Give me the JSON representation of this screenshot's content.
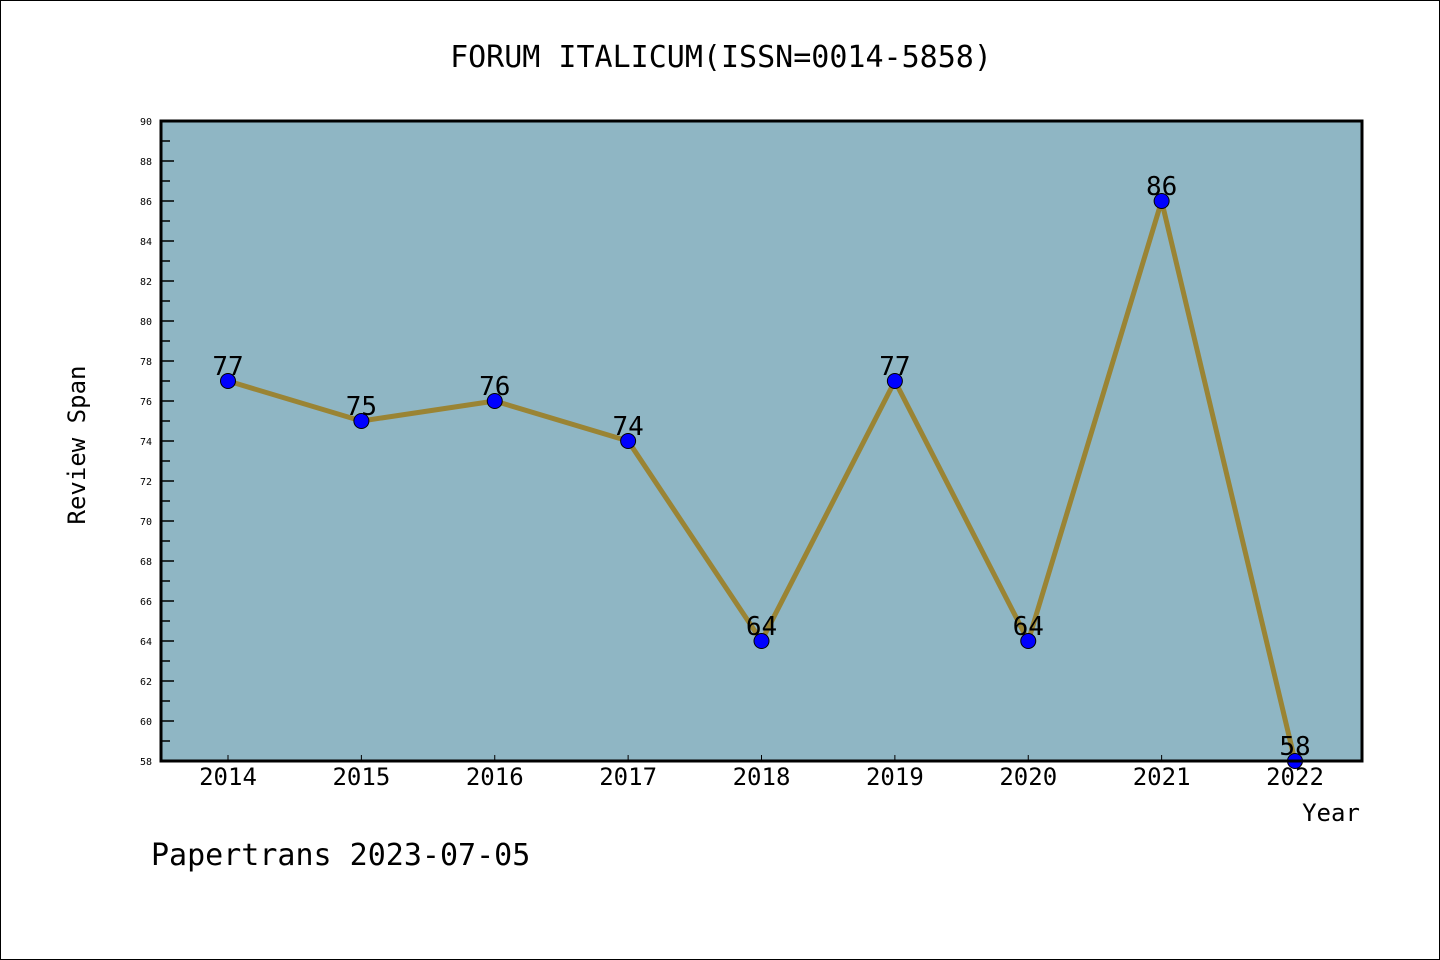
{
  "chart_data": {
    "type": "line",
    "title": "FORUM ITALICUM(ISSN=0014-5858)",
    "xlabel": "Year",
    "ylabel": "Review Span",
    "x": [
      "2014",
      "2015",
      "2016",
      "2017",
      "2018",
      "2019",
      "2020",
      "2021",
      "2022"
    ],
    "series": [
      {
        "name": "Review Span",
        "values": [
          77,
          75,
          76,
          74,
          64,
          77,
          64,
          86,
          58
        ]
      }
    ],
    "ylim": [
      58,
      90
    ],
    "yticks": [
      58,
      60,
      62,
      64,
      66,
      68,
      70,
      72,
      74,
      76,
      78,
      80,
      82,
      84,
      86,
      88,
      90
    ],
    "grid": false,
    "colors": {
      "background": "#8fb6c4",
      "line": "#9a8434",
      "marker": "#0000ff"
    }
  },
  "footer": "Papertrans 2023-07-05"
}
